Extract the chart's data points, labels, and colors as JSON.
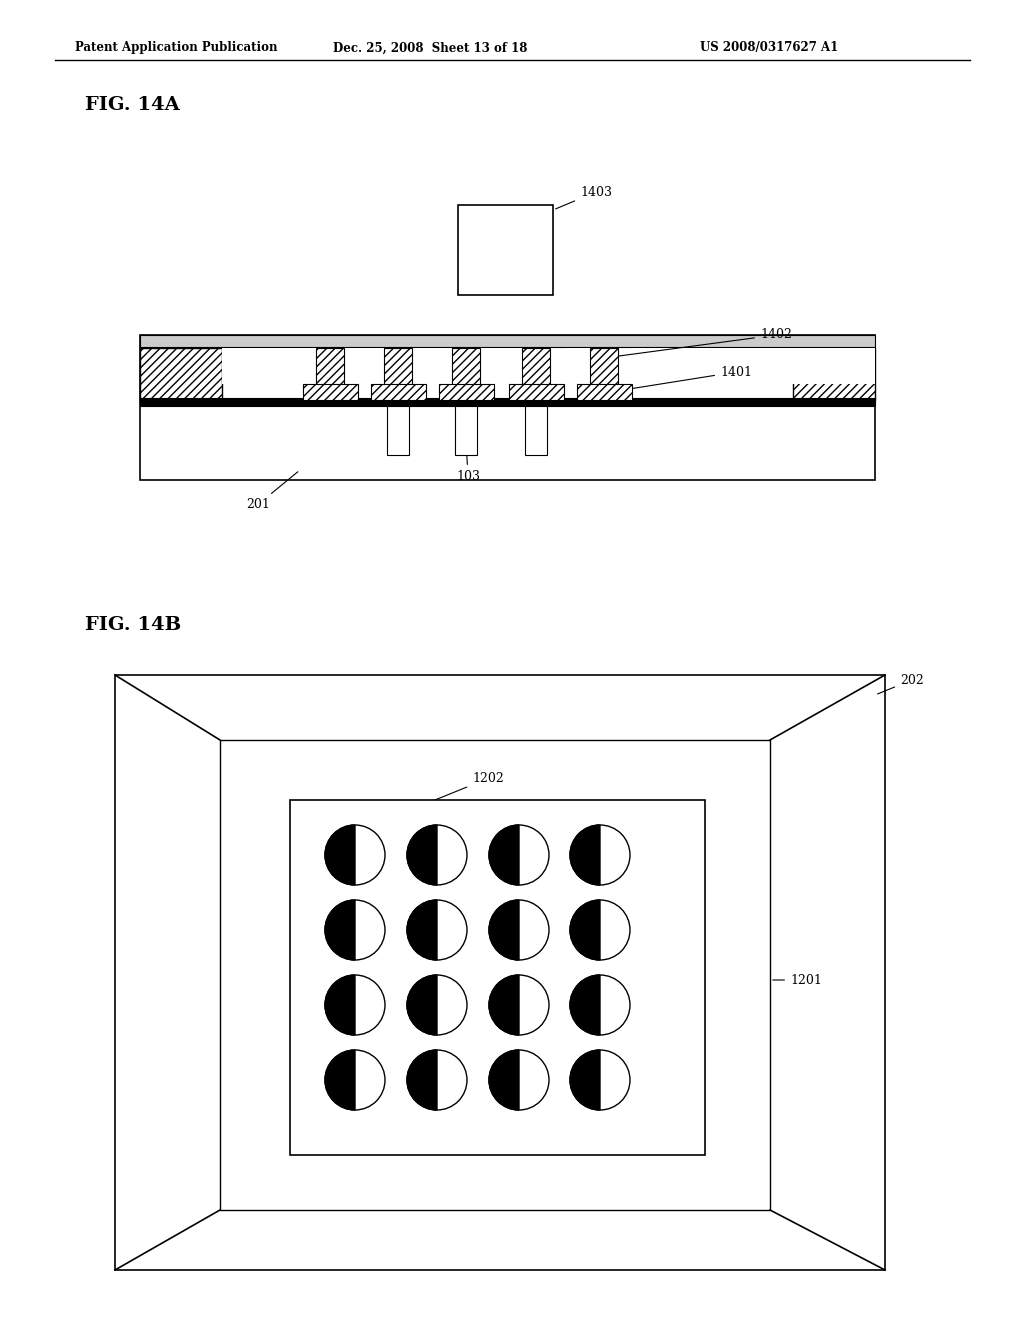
{
  "bg_color": "#ffffff",
  "header_text": "Patent Application Publication",
  "header_date": "Dec. 25, 2008  Sheet 13 of 18",
  "header_patent": "US 2008/0317627 A1",
  "fig_a_label": "FIG. 14A",
  "fig_b_label": "FIG. 14B"
}
